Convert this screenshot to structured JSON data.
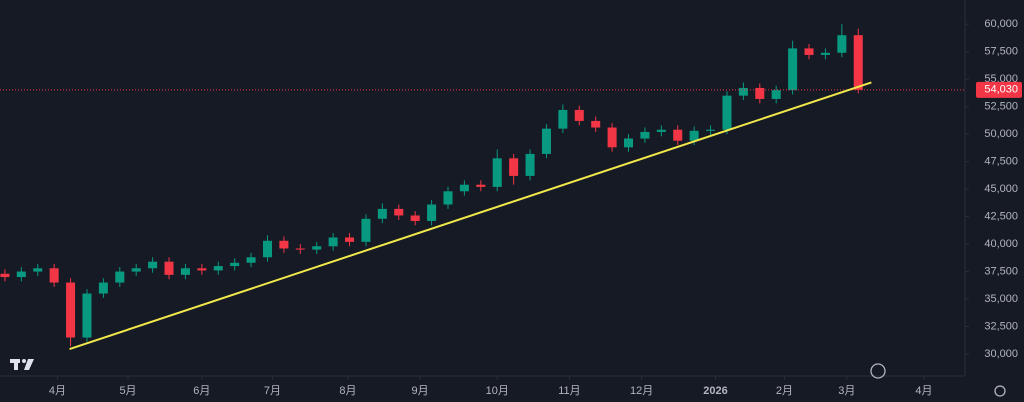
{
  "chart_data": {
    "type": "candlestick",
    "open": [
      37300,
      37000,
      37500,
      37800,
      36500,
      31500,
      35500,
      36500,
      37500,
      37800,
      38400,
      37200,
      37800,
      37600,
      38000,
      38300,
      38800,
      40300,
      39600,
      39500,
      39800,
      40600,
      40200,
      42300,
      43200,
      42600,
      42100,
      43600,
      44800,
      45400,
      45200,
      47800,
      46200,
      48200,
      50500,
      52200,
      51200,
      50600,
      48800,
      49600,
      50200,
      50400,
      49400,
      50300,
      50400,
      53500,
      54200,
      53200,
      54000,
      57800,
      57200,
      57400,
      59000
    ],
    "high": [
      37700,
      37900,
      38200,
      38200,
      36900,
      35900,
      36900,
      37900,
      38200,
      38800,
      38800,
      38200,
      38200,
      38400,
      38700,
      39200,
      40800,
      40700,
      40000,
      40200,
      41000,
      41000,
      42700,
      43700,
      43600,
      43000,
      44000,
      45200,
      45800,
      45800,
      48600,
      48200,
      48600,
      50900,
      52700,
      52600,
      51600,
      51000,
      50000,
      50600,
      50800,
      50800,
      50700,
      50800,
      53900,
      54700,
      54600,
      54400,
      58500,
      58200,
      57800,
      60000,
      59600
    ],
    "low": [
      36600,
      36600,
      37100,
      36100,
      30700,
      31100,
      35100,
      36100,
      37100,
      37400,
      36800,
      36800,
      37200,
      37200,
      37600,
      37900,
      38400,
      39200,
      39100,
      39100,
      39400,
      39800,
      39800,
      41900,
      42200,
      41700,
      41700,
      43200,
      44400,
      44800,
      44800,
      45400,
      45800,
      47800,
      50100,
      50800,
      50200,
      48400,
      48400,
      49200,
      49800,
      49000,
      49000,
      49900,
      50000,
      53100,
      52800,
      52800,
      53600,
      56800,
      56800,
      57000,
      53700
    ],
    "close": [
      37000,
      37500,
      37800,
      36500,
      31500,
      35500,
      36500,
      37500,
      37800,
      38400,
      37200,
      37800,
      37600,
      38000,
      38300,
      38800,
      40300,
      39600,
      39500,
      39800,
      40600,
      40200,
      42300,
      43200,
      42600,
      42100,
      43600,
      44800,
      45400,
      45200,
      47800,
      46200,
      48200,
      50500,
      52200,
      51200,
      50600,
      48800,
      49600,
      50200,
      50400,
      49400,
      50300,
      50400,
      53500,
      54200,
      53200,
      54000,
      57800,
      57200,
      57400,
      59000,
      54030
    ],
    "up_color": "#089981",
    "down_color": "#f23645",
    "ylim": [
      28000,
      62200
    ],
    "yticks": [
      {
        "value": 30000,
        "label": "30,000"
      },
      {
        "value": 32500,
        "label": "32,500"
      },
      {
        "value": 35000,
        "label": "35,000"
      },
      {
        "value": 37500,
        "label": "37,500"
      },
      {
        "value": 40000,
        "label": "40,000"
      },
      {
        "value": 42500,
        "label": "42,500"
      },
      {
        "value": 45000,
        "label": "45,000"
      },
      {
        "value": 47500,
        "label": "47,500"
      },
      {
        "value": 50000,
        "label": "50,000"
      },
      {
        "value": 52500,
        "label": "52,500"
      },
      {
        "value": 55000,
        "label": "55,000"
      },
      {
        "value": 57500,
        "label": "57,500"
      },
      {
        "value": 60000,
        "label": "60,000"
      }
    ],
    "xlim": [
      -0.3,
      58.2
    ],
    "xticks": [
      {
        "value": 3.2,
        "label": "4月"
      },
      {
        "value": 7.5,
        "label": "5月"
      },
      {
        "value": 12,
        "label": "6月"
      },
      {
        "value": 16.3,
        "label": "7月"
      },
      {
        "value": 20.9,
        "label": "8月"
      },
      {
        "value": 25.3,
        "label": "9月"
      },
      {
        "value": 30,
        "label": "10月"
      },
      {
        "value": 34.4,
        "label": "11月"
      },
      {
        "value": 38.8,
        "label": "12月"
      },
      {
        "value": 43.3,
        "label": "2026"
      },
      {
        "value": 47.5,
        "label": "2月"
      },
      {
        "value": 51.3,
        "label": "3月"
      },
      {
        "value": 56,
        "label": "4月"
      }
    ],
    "trendline": {
      "x": [
        3.94,
        52.8
      ],
      "values": [
        30450,
        54700
      ],
      "color": "#f2e84b"
    },
    "last_price": {
      "value": 54030,
      "label": "54,030"
    }
  }
}
